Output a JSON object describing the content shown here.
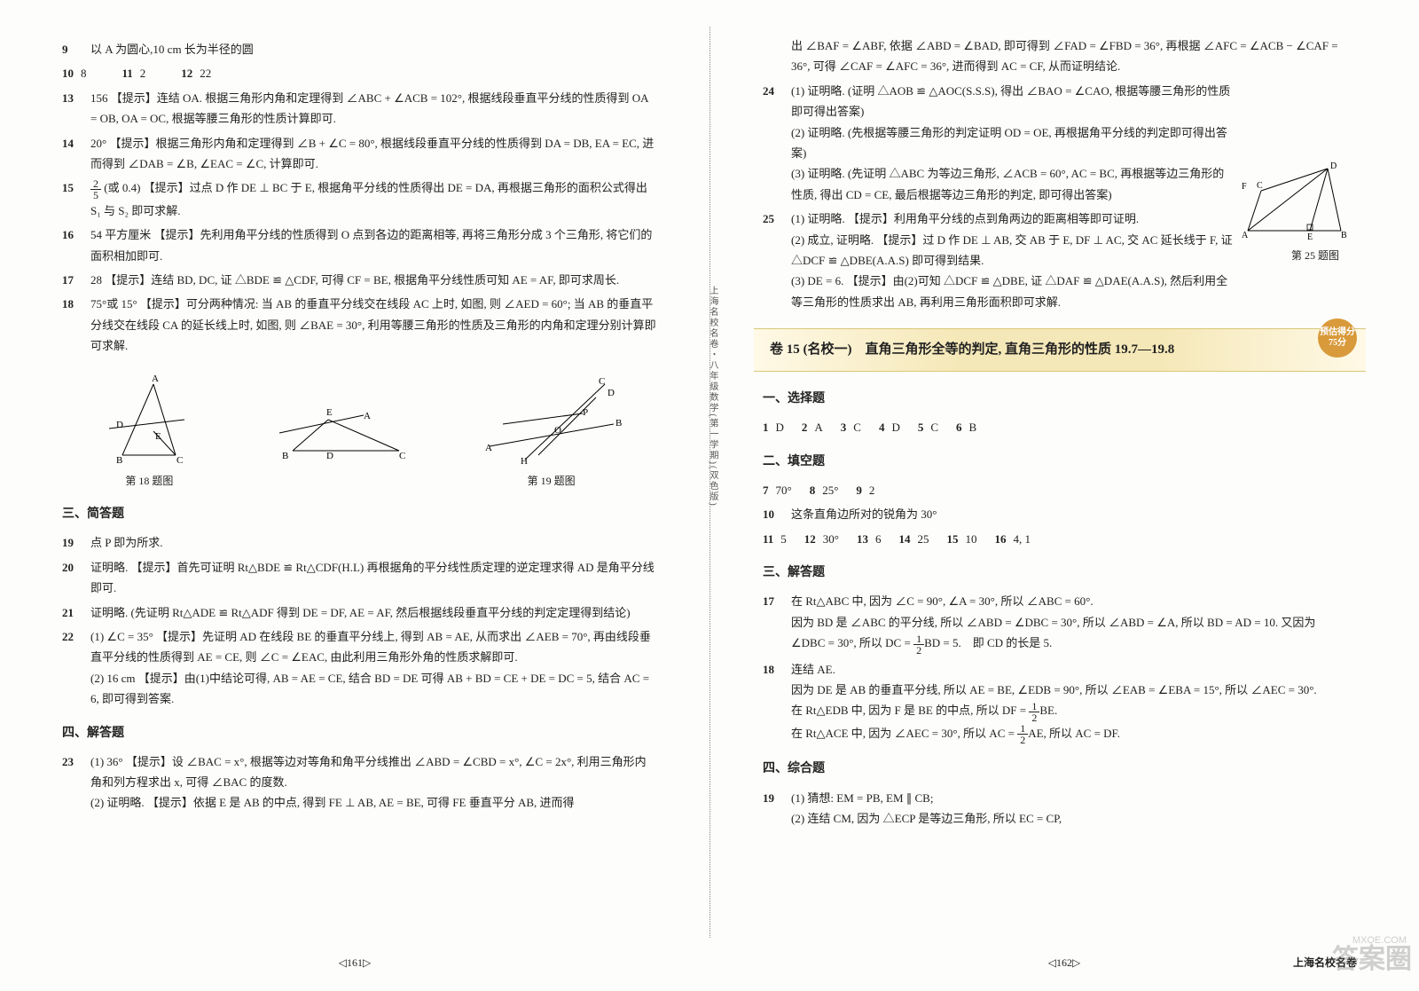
{
  "left": {
    "q9": "以 A 为圆心,10 cm 长为半径的圆",
    "q10": "8",
    "q11": "2",
    "q12": "22",
    "q13": "156 【提示】连结 OA. 根据三角形内角和定理得到 ∠ABC + ∠ACB = 102°, 根据线段垂直平分线的性质得到 OA = OB, OA = OC, 根据等腰三角形的性质计算即可.",
    "q14": "20° 【提示】根据三角形内角和定理得到 ∠B + ∠C = 80°, 根据线段垂直平分线的性质得到 DA = DB, EA = EC, 进而得到 ∠DAB = ∠B, ∠EAC = ∠C, 计算即可.",
    "q15a": "(或 0.4) 【提示】过点 D 作 DE ⊥ BC 于 E, 根据角平分线的性质得出 DE = DA, 再根据三角形的面积公式得出",
    "q15b": "S₁ 与 S₂ 即可求解.",
    "q16": "54 平方厘米 【提示】先利用角平分线的性质得到 O 点到各边的距离相等, 再将三角形分成 3 个三角形, 将它们的面积相加即可.",
    "q17": "28 【提示】连结 BD, DC, 证 △BDE ≌ △CDF, 可得 CF = BE, 根据角平分线性质可知 AE = AF, 即可求周长.",
    "q18": "75°或 15° 【提示】可分两种情况: 当 AB 的垂直平分线交在线段 AC 上时, 如图, 则 ∠AED = 60°; 当 AB 的垂直平分线交在线段 CA 的延长线上时, 如图, 则 ∠BAE = 30°, 利用等腰三角形的性质及三角形的内角和定理分别计算即可求解.",
    "fig18cap": "第 18 题图",
    "fig19cap": "第 19 题图",
    "sec3": "三、简答题",
    "q19": "点 P 即为所求.",
    "q20": "证明略. 【提示】首先可证明 Rt△BDE ≌ Rt△CDF(H.L) 再根据角的平分线性质定理的逆定理求得 AD 是角平分线即可.",
    "q21": "证明略. (先证明 Rt△ADE ≌ Rt△ADF 得到 DE = DF, AE = AF, 然后根据线段垂直平分线的判定定理得到结论)",
    "q22a": "(1) ∠C = 35° 【提示】先证明 AD 在线段 BE 的垂直平分线上, 得到 AB = AE, 从而求出 ∠AEB = 70°, 再由线段垂直平分线的性质得到 AE = CE, 则 ∠C = ∠EAC, 由此利用三角形外角的性质求解即可.",
    "q22b": "(2) 16 cm 【提示】由(1)中结论可得, AB = AE = CE, 结合 BD = DE 可得 AB + BD = CE + DE = DC = 5, 结合 AC = 6, 即可得到答案.",
    "sec4": "四、解答题",
    "q23a": "(1) 36° 【提示】设 ∠BAC = x°, 根据等边对等角和角平分线推出 ∠ABD = ∠CBD = x°, ∠C = 2x°, 利用三角形内角和列方程求出 x, 可得 ∠BAC 的度数.",
    "q23b": "(2) 证明略. 【提示】依据 E 是 AB 的中点, 得到 FE ⊥ AB, AE = BE, 可得 FE 垂直平分 AB, 进而得",
    "pagenum": "◁161▷"
  },
  "right": {
    "cont1": "出 ∠BAF = ∠ABF, 依据 ∠ABD = ∠BAD, 即可得到 ∠FAD = ∠FBD = 36°, 再根据 ∠AFC = ∠ACB − ∠CAF = 36°, 可得 ∠CAF = ∠AFC = 36°, 进而得到 AC = CF, 从而证明结论.",
    "q24a": "(1) 证明略. (证明 △AOB ≌ △AOC(S.S.S), 得出 ∠BAO = ∠CAO, 根据等腰三角形的性质即可得出答案)",
    "q24b": "(2) 证明略. (先根据等腰三角形的判定证明 OD = OE, 再根据角平分线的判定即可得出答案)",
    "q24c": "(3) 证明略. (先证明 △ABC 为等边三角形, ∠ACB = 60°, AC = BC, 再根据等边三角形的性质, 得出 CD = CE, 最后根据等边三角形的判定, 即可得出答案)",
    "q25a": "(1) 证明略. 【提示】利用角平分线的点到角两边的距离相等即可证明.",
    "q25b": "(2) 成立, 证明略. 【提示】过 D 作 DE ⊥ AB, 交 AB 于 E, DF ⊥ AC, 交 AC 延长线于 F, 证 △DCF ≌ △DBE(A.A.S) 即可得到结果.",
    "q25c": "(3) DE = 6. 【提示】由(2)可知 △DCF ≌ △DBE, 证 △DAF ≌ △DAE(A.A.S), 然后利用全等三角形的性质求出 AB, 再利用三角形面积即可求解.",
    "fig25cap": "第 25 题图",
    "banner": "卷 15 (名校一)　直角三角形全等的判定, 直角三角形的性质 19.7—19.8",
    "badge": "预估得分 75分",
    "sec1": "一、选择题",
    "mc": [
      {
        "n": "1",
        "a": "D"
      },
      {
        "n": "2",
        "a": "A"
      },
      {
        "n": "3",
        "a": "C"
      },
      {
        "n": "4",
        "a": "D"
      },
      {
        "n": "5",
        "a": "C"
      },
      {
        "n": "6",
        "a": "B"
      }
    ],
    "sec2": "二、填空题",
    "fb1": [
      {
        "n": "7",
        "a": "70°"
      },
      {
        "n": "8",
        "a": "25°"
      },
      {
        "n": "9",
        "a": "2"
      }
    ],
    "q10r": "这条直角边所对的锐角为 30°",
    "fb2": [
      {
        "n": "11",
        "a": "5"
      },
      {
        "n": "12",
        "a": "30°"
      },
      {
        "n": "13",
        "a": "6"
      },
      {
        "n": "14",
        "a": "25"
      },
      {
        "n": "15",
        "a": "10"
      },
      {
        "n": "16",
        "a": "4, 1"
      }
    ],
    "sec3r": "三、解答题",
    "q17ra": "在 Rt△ABC 中, 因为 ∠C = 90°, ∠A = 30°, 所以 ∠ABC = 60°.",
    "q17rb": "因为 BD 是 ∠ABC 的平分线, 所以 ∠ABD = ∠DBC = 30°, 所以 ∠ABD = ∠A, 所以 BD = AD = 10. 又因为",
    "q17rc": "∠DBC = 30°, 所以 DC = ",
    "q17rd": "BD = 5.　即 CD 的长是 5.",
    "q18ra": "连结 AE.",
    "q18rb": "因为 DE 是 AB 的垂直平分线, 所以 AE = BE, ∠EDB = 90°, 所以 ∠EAB = ∠EBA = 15°, 所以 ∠AEC = 30°.",
    "q18rc": "在 Rt△EDB 中, 因为 F 是 BE 的中点, 所以 DF = ",
    "q18rd": "BE.",
    "q18re": "在 Rt△ACE 中, 因为 ∠AEC = 30°, 所以 AC = ",
    "q18rf": "AE, 所以 AC = DF.",
    "sec4r": "四、综合题",
    "q19ra": "(1) 猜想: EM = PB, EM ∥ CB;",
    "q19rb": "(2) 连结 CM, 因为 △ECP 是等边三角形, 所以 EC = CP,",
    "pagenum": "◁162▷",
    "footer": "上海名校名卷",
    "sidetext": "上海名校名卷・八年级数学(第一学期)(双色版)"
  }
}
